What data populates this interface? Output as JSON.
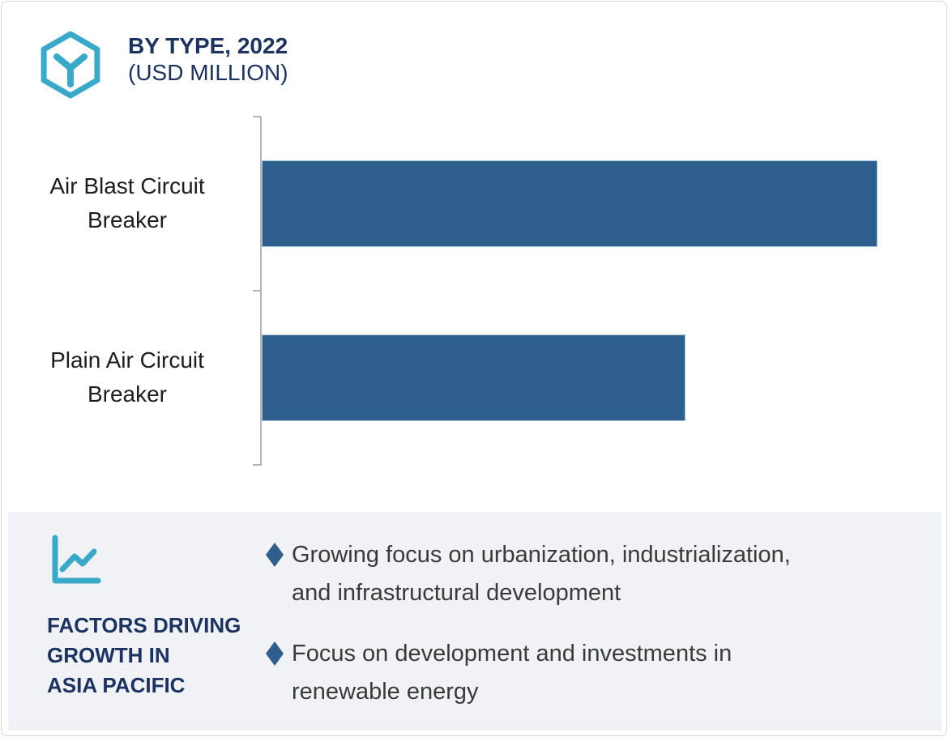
{
  "header": {
    "icon": "hexagon-y-icon",
    "title": "BY TYPE, 2022",
    "subtitle": "(USD MILLION)"
  },
  "chart_data": {
    "type": "bar",
    "orientation": "horizontal",
    "title": "BY TYPE, 2022 (USD MILLION)",
    "categories": [
      "Air Blast Circuit Breaker",
      "Plain Air Circuit Breaker"
    ],
    "relative_values": [
      100,
      68.8
    ],
    "value_axis_visible": false,
    "data_labels_visible": false,
    "bar_color": "#2d5e8c"
  },
  "chart": {
    "labels": [
      [
        "Air Blast Circuit",
        "Breaker"
      ],
      [
        "Plain Air Circuit",
        "Breaker"
      ]
    ]
  },
  "factors_panel": {
    "icon": "line-chart-icon",
    "heading_lines": [
      "FACTORS DRIVING",
      "GROWTH IN",
      "ASIA PACIFIC"
    ],
    "bullets": [
      {
        "lines": [
          "Growing focus on urbanization, industrialization,",
          "and infrastructural development"
        ]
      },
      {
        "lines": [
          "Focus on development and investments in",
          "renewable energy"
        ]
      }
    ]
  },
  "colors": {
    "accent-teal": "#39a9c9",
    "navy": "#1c3361",
    "bar-blue": "#2d5e8c",
    "bar-border": "#a6c6de",
    "panel-bg": "#f1f2f6",
    "axis-gray": "#b4b4b4",
    "text-dark": "#1d1d1d",
    "body-text": "#3a3a3a",
    "frame-border": "#d6d6d6"
  }
}
